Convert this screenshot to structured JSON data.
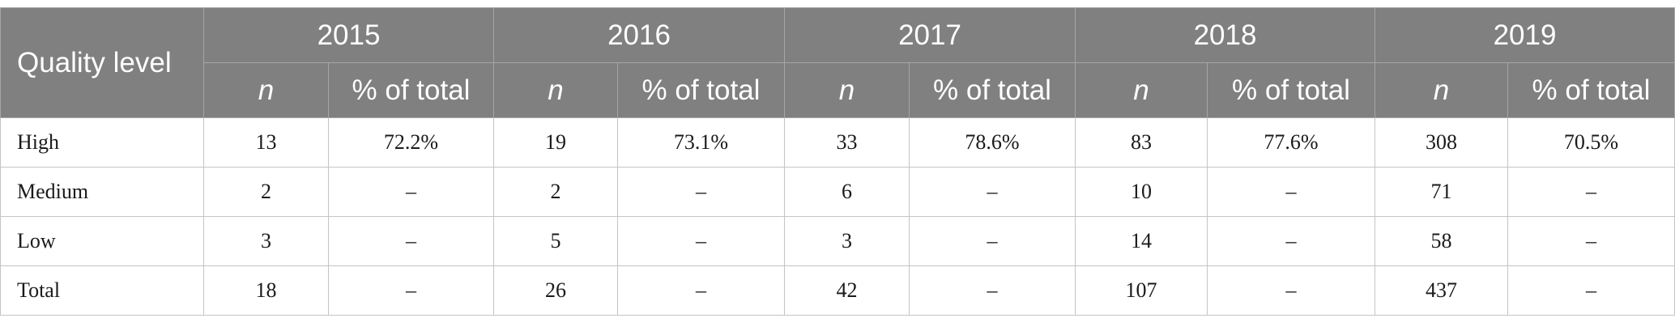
{
  "table": {
    "header": {
      "corner": "Quality level",
      "years": [
        {
          "year": "2015",
          "n": "n",
          "pct": "% of total"
        },
        {
          "year": "2016",
          "n": "n",
          "pct": "% of total"
        },
        {
          "year": "2017",
          "n": "n",
          "pct": "% of total"
        },
        {
          "year": "2018",
          "n": "n",
          "pct": "% of total"
        },
        {
          "year": "2019",
          "n": "n",
          "pct": "% of total"
        }
      ]
    },
    "rows": [
      {
        "label": "High",
        "cells": [
          "13",
          "72.2%",
          "19",
          "73.1%",
          "33",
          "78.6%",
          "83",
          "77.6%",
          "308",
          "70.5%"
        ]
      },
      {
        "label": "Medium",
        "cells": [
          "2",
          "–",
          "2",
          "–",
          "6",
          "–",
          "10",
          "–",
          "71",
          "–"
        ]
      },
      {
        "label": "Low",
        "cells": [
          "3",
          "–",
          "5",
          "–",
          "3",
          "–",
          "14",
          "–",
          "58",
          "–"
        ]
      },
      {
        "label": "Total",
        "cells": [
          "18",
          "–",
          "26",
          "–",
          "42",
          "–",
          "107",
          "–",
          "437",
          "–"
        ]
      }
    ]
  }
}
